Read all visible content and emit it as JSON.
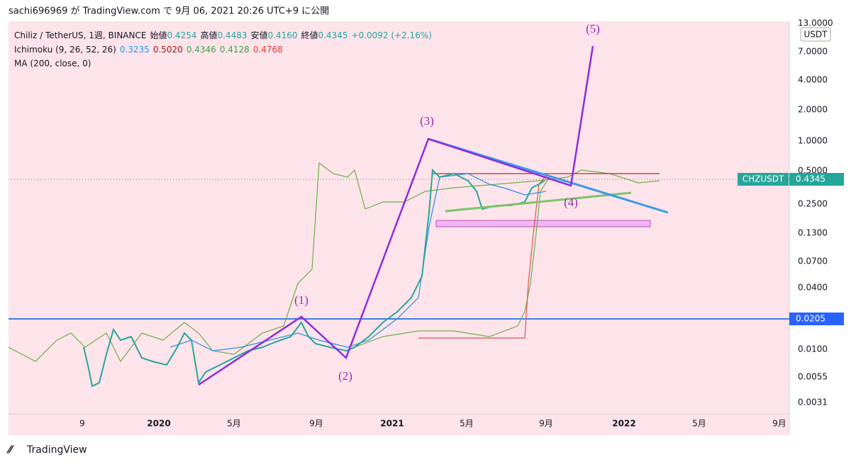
{
  "header": {
    "text": "sachi696969 が TradingView.com で 9月 06, 2021 20:26 UTC+9 に公開"
  },
  "legend": {
    "symbol": "Chiliz / TetherUS, 1週, BINANCE",
    "ohlc": [
      [
        "始値",
        "0.4254"
      ],
      [
        "高値",
        "0.4483"
      ],
      [
        "安値",
        "0.4160"
      ],
      [
        "終値",
        "0.4345"
      ]
    ],
    "change": "+0.0092 (+2.16%)",
    "ichimoku": {
      "name": "Ichimoku (9, 26, 52, 26)",
      "values": [
        "0.3235",
        "0.5020",
        "0.4346",
        "0.4128",
        "0.4768"
      ]
    },
    "ma": "MA (200, close, 0)"
  },
  "annotations": {
    "wave1": "(1)",
    "wave2": "(2)",
    "wave3": "(3)",
    "wave4": "(4)",
    "wave5": "(5)"
  },
  "y_axis": {
    "currency": "USDT",
    "labels": [
      "13.0000",
      "7.0000",
      "4.0000",
      "2.0000",
      "1.0000",
      "0.5000",
      "0.2500",
      "0.1300",
      "0.0700",
      "0.0400",
      "0.0100",
      "0.0055",
      "0.0031"
    ],
    "level_badge": "0.0205",
    "symbol_badge": {
      "name": "CHZUSDT",
      "price": "0.4345"
    }
  },
  "x_axis": {
    "labels": [
      "9",
      "2020",
      "5月",
      "9月",
      "2021",
      "5月",
      "9月",
      "2022",
      "5月",
      "9月"
    ]
  },
  "footer": {
    "brand": "TradingView"
  }
}
